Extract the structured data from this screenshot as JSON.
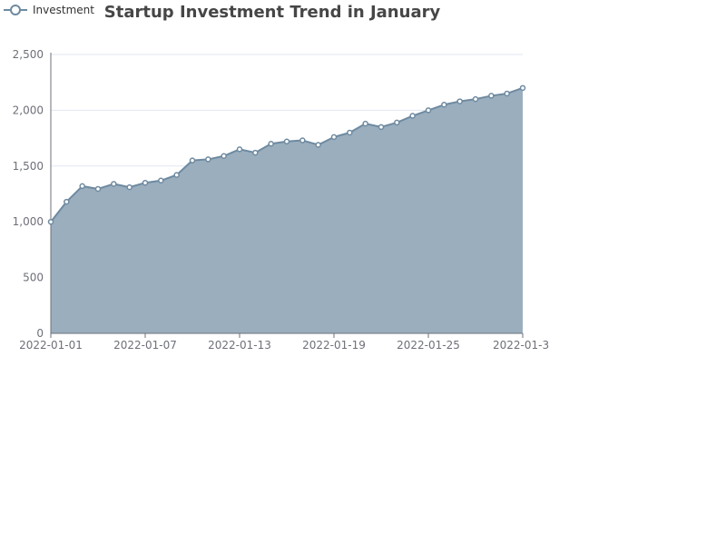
{
  "chart_data": {
    "type": "area",
    "title": "Startup Investment Trend in January",
    "legend": {
      "entries": [
        "Investment"
      ],
      "placement": "top-left"
    },
    "xlabel": "",
    "ylabel": "",
    "ylim": [
      0,
      2500
    ],
    "yticks": [
      0,
      500,
      1000,
      1500,
      2000,
      2500
    ],
    "ytick_labels": [
      "0",
      "500",
      "1,000",
      "1,500",
      "2,000",
      "2,500"
    ],
    "xtick_labels": [
      "2022-01-01",
      "2022-01-07",
      "2022-01-13",
      "2022-01-19",
      "2022-01-25",
      "2022-01-3"
    ],
    "grid": true,
    "colors": {
      "series": "#6e8aa0",
      "fill": "#9aaebe",
      "grid": "#e0e6f1",
      "axis": "#6e7079"
    },
    "series": [
      {
        "name": "Investment",
        "x": [
          "2022-01-01",
          "2022-01-02",
          "2022-01-03",
          "2022-01-04",
          "2022-01-05",
          "2022-01-06",
          "2022-01-07",
          "2022-01-08",
          "2022-01-09",
          "2022-01-10",
          "2022-01-11",
          "2022-01-12",
          "2022-01-13",
          "2022-01-14",
          "2022-01-15",
          "2022-01-16",
          "2022-01-17",
          "2022-01-18",
          "2022-01-19",
          "2022-01-20",
          "2022-01-21",
          "2022-01-22",
          "2022-01-23",
          "2022-01-24",
          "2022-01-25",
          "2022-01-26",
          "2022-01-27",
          "2022-01-28",
          "2022-01-29",
          "2022-01-30",
          "2022-01-31"
        ],
        "values": [
          1000,
          1180,
          1320,
          1295,
          1340,
          1310,
          1350,
          1370,
          1420,
          1550,
          1560,
          1590,
          1650,
          1620,
          1700,
          1720,
          1730,
          1690,
          1760,
          1800,
          1880,
          1850,
          1890,
          1950,
          2000,
          2050,
          2080,
          2100,
          2130,
          2150,
          2200
        ]
      }
    ]
  }
}
